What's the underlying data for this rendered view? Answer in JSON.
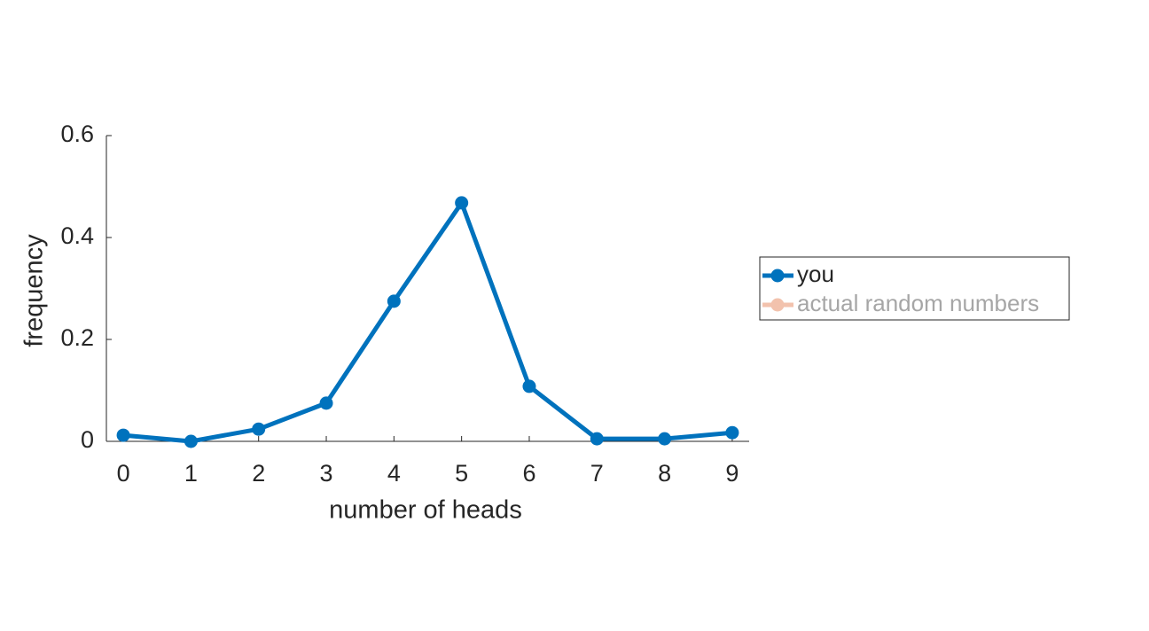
{
  "chart_data": {
    "type": "line",
    "x_label": "number of heads",
    "y_label": "frequency",
    "x": [
      0,
      1,
      2,
      3,
      4,
      5,
      6,
      7,
      8,
      9
    ],
    "series": [
      {
        "name": "you",
        "color": "#0072bd",
        "visible": true,
        "values": [
          0.012,
          0,
          0.024,
          0.075,
          0.275,
          0.468,
          0.108,
          0.005,
          0.005,
          0.017
        ]
      },
      {
        "name": "actual random numbers",
        "color": "#f2c2ad",
        "visible": false,
        "values": [
          null,
          null,
          null,
          null,
          null,
          null,
          null,
          null,
          null,
          null
        ]
      }
    ],
    "xlim": [
      -0.25,
      9.25
    ],
    "xticks": [
      0,
      1,
      2,
      3,
      4,
      5,
      6,
      7,
      8,
      9
    ],
    "ylim": [
      0,
      0.6
    ],
    "yticks": [
      0,
      0.2,
      0.4,
      0.6
    ],
    "legend": "outside-right"
  }
}
